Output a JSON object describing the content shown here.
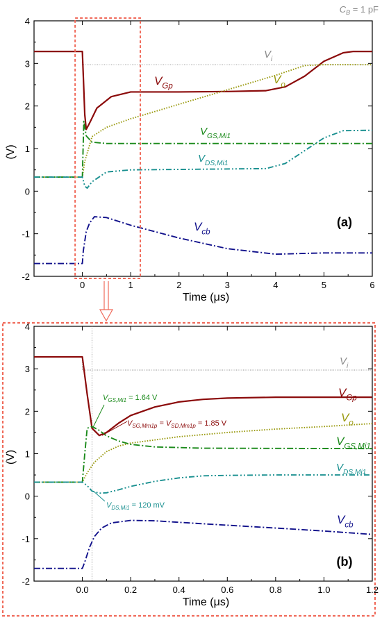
{
  "chart_data": [
    {
      "type": "line",
      "panel_label": "(a)",
      "annotation_top": "C_B = 1 pF",
      "xlabel": "Time (μs)",
      "ylabel": "(V)",
      "xlim": [
        -1.0,
        6.0
      ],
      "ylim": [
        -2,
        4
      ],
      "xticks": [
        0,
        1,
        2,
        3,
        4,
        5,
        6
      ],
      "yticks": [
        -2,
        -1,
        0,
        1,
        2,
        3,
        4
      ],
      "grid": false,
      "series": [
        {
          "name": "V_i",
          "color": "#8c8c8c",
          "style": "dotted-thin",
          "points": [
            [
              -1.0,
              3.28
            ],
            [
              0.0,
              3.28
            ],
            [
              0.0,
              2.97
            ],
            [
              6.0,
              2.97
            ]
          ]
        },
        {
          "name": "V_Gp",
          "color": "#8b0a0a",
          "style": "solid",
          "points": [
            [
              -1.0,
              3.28
            ],
            [
              0.0,
              3.28
            ],
            [
              0.02,
              2.7
            ],
            [
              0.05,
              1.8
            ],
            [
              0.08,
              1.45
            ],
            [
              0.15,
              1.6
            ],
            [
              0.3,
              1.95
            ],
            [
              0.6,
              2.22
            ],
            [
              1.0,
              2.33
            ],
            [
              2.0,
              2.33
            ],
            [
              3.0,
              2.34
            ],
            [
              3.8,
              2.36
            ],
            [
              4.2,
              2.45
            ],
            [
              4.6,
              2.7
            ],
            [
              5.0,
              3.05
            ],
            [
              5.4,
              3.25
            ],
            [
              5.6,
              3.28
            ],
            [
              6.0,
              3.28
            ]
          ]
        },
        {
          "name": "V_o",
          "color": "#9a9a10",
          "style": "dotted",
          "points": [
            [
              -1.0,
              0.33
            ],
            [
              0.0,
              0.33
            ],
            [
              0.05,
              0.7
            ],
            [
              0.2,
              1.28
            ],
            [
              0.5,
              1.5
            ],
            [
              1.0,
              1.7
            ],
            [
              2.0,
              2.04
            ],
            [
              3.0,
              2.38
            ],
            [
              4.0,
              2.72
            ],
            [
              4.6,
              2.95
            ],
            [
              5.0,
              2.97
            ],
            [
              6.0,
              2.97
            ]
          ]
        },
        {
          "name": "V_GS,Mi1",
          "color": "#1b8a1b",
          "style": "dash-dot",
          "points": [
            [
              -1.0,
              0.33
            ],
            [
              0.0,
              0.33
            ],
            [
              0.03,
              1.64
            ],
            [
              0.08,
              1.3
            ],
            [
              0.2,
              1.15
            ],
            [
              0.5,
              1.12
            ],
            [
              6.0,
              1.12
            ]
          ]
        },
        {
          "name": "V_DS,Mi1",
          "color": "#1a9090",
          "style": "dash-dot-dot",
          "points": [
            [
              -1.0,
              0.33
            ],
            [
              0.0,
              0.33
            ],
            [
              0.02,
              0.25
            ],
            [
              0.05,
              0.12
            ],
            [
              0.1,
              0.07
            ],
            [
              0.2,
              0.22
            ],
            [
              0.5,
              0.45
            ],
            [
              1.0,
              0.5
            ],
            [
              3.8,
              0.53
            ],
            [
              4.2,
              0.65
            ],
            [
              4.6,
              0.95
            ],
            [
              5.0,
              1.25
            ],
            [
              5.4,
              1.42
            ],
            [
              6.0,
              1.43
            ]
          ]
        },
        {
          "name": "V_cb",
          "color": "#12128c",
          "style": "dash-dot",
          "points": [
            [
              -1.0,
              -1.7
            ],
            [
              0.0,
              -1.7
            ],
            [
              0.02,
              -1.4
            ],
            [
              0.08,
              -0.95
            ],
            [
              0.15,
              -0.75
            ],
            [
              0.25,
              -0.6
            ],
            [
              0.5,
              -0.62
            ],
            [
              1.0,
              -0.8
            ],
            [
              2.0,
              -1.1
            ],
            [
              3.0,
              -1.35
            ],
            [
              4.0,
              -1.48
            ],
            [
              5.0,
              -1.45
            ],
            [
              6.0,
              -1.45
            ]
          ]
        }
      ],
      "curve_labels": [
        {
          "text": "V",
          "sub": "i",
          "series": 0
        },
        {
          "text": "V",
          "sub": "Gp",
          "series": 1
        },
        {
          "text": "V",
          "sub": "o",
          "series": 2
        },
        {
          "text": "V",
          "sub": "GS,Mi1",
          "series": 3
        },
        {
          "text": "V",
          "sub": "DS,Mi1",
          "series": 4
        },
        {
          "text": "V",
          "sub": "cb",
          "series": 5
        }
      ],
      "zoom_box": {
        "x": [
          -0.15,
          1.2
        ],
        "y": [
          -2,
          4
        ]
      }
    },
    {
      "type": "line",
      "panel_label": "(b)",
      "xlabel": "Time (μs)",
      "ylabel": "(V)",
      "xlim": [
        -0.2,
        1.2
      ],
      "ylim": [
        -2,
        4
      ],
      "xticks": [
        0.0,
        0.2,
        0.4,
        0.6,
        0.8,
        1.0,
        1.2
      ],
      "yticks": [
        -2,
        -1,
        0,
        1,
        2,
        3,
        4
      ],
      "grid": false,
      "marker_time": 0.04,
      "series": [
        {
          "name": "V_i",
          "color": "#8c8c8c",
          "style": "dotted-thin",
          "points": [
            [
              -0.2,
              3.28
            ],
            [
              0.0,
              3.28
            ],
            [
              0.0,
              2.97
            ],
            [
              1.2,
              2.97
            ]
          ]
        },
        {
          "name": "V_Gp",
          "color": "#8b0a0a",
          "style": "solid",
          "points": [
            [
              -0.2,
              3.28
            ],
            [
              0.0,
              3.28
            ],
            [
              0.02,
              2.4
            ],
            [
              0.04,
              1.6
            ],
            [
              0.07,
              1.43
            ],
            [
              0.1,
              1.5
            ],
            [
              0.15,
              1.72
            ],
            [
              0.2,
              1.9
            ],
            [
              0.3,
              2.1
            ],
            [
              0.4,
              2.22
            ],
            [
              0.5,
              2.28
            ],
            [
              0.6,
              2.31
            ],
            [
              0.8,
              2.33
            ],
            [
              1.2,
              2.33
            ]
          ]
        },
        {
          "name": "V_o",
          "color": "#9a9a10",
          "style": "dotted",
          "points": [
            [
              -0.2,
              0.33
            ],
            [
              0.0,
              0.33
            ],
            [
              0.02,
              0.55
            ],
            [
              0.05,
              0.8
            ],
            [
              0.1,
              1.05
            ],
            [
              0.15,
              1.18
            ],
            [
              0.2,
              1.25
            ],
            [
              0.4,
              1.4
            ],
            [
              0.6,
              1.5
            ],
            [
              0.8,
              1.58
            ],
            [
              1.0,
              1.64
            ],
            [
              1.2,
              1.71
            ]
          ]
        },
        {
          "name": "V_GS,Mi1",
          "color": "#1b8a1b",
          "style": "dash-dot",
          "points": [
            [
              -0.2,
              0.33
            ],
            [
              0.0,
              0.33
            ],
            [
              0.01,
              1.0
            ],
            [
              0.02,
              1.6
            ],
            [
              0.04,
              1.64
            ],
            [
              0.07,
              1.55
            ],
            [
              0.1,
              1.42
            ],
            [
              0.15,
              1.3
            ],
            [
              0.2,
              1.22
            ],
            [
              0.3,
              1.16
            ],
            [
              0.5,
              1.13
            ],
            [
              1.2,
              1.12
            ]
          ]
        },
        {
          "name": "V_DS,Mi1",
          "color": "#1a9090",
          "style": "dash-dot-dot",
          "points": [
            [
              -0.2,
              0.33
            ],
            [
              0.0,
              0.33
            ],
            [
              0.02,
              0.25
            ],
            [
              0.04,
              0.12
            ],
            [
              0.07,
              0.07
            ],
            [
              0.1,
              0.08
            ],
            [
              0.15,
              0.15
            ],
            [
              0.2,
              0.23
            ],
            [
              0.3,
              0.35
            ],
            [
              0.4,
              0.43
            ],
            [
              0.5,
              0.48
            ],
            [
              0.6,
              0.49
            ],
            [
              0.8,
              0.5
            ],
            [
              1.2,
              0.5
            ]
          ]
        },
        {
          "name": "V_cb",
          "color": "#12128c",
          "style": "dash-dot",
          "points": [
            [
              -0.2,
              -1.7
            ],
            [
              0.0,
              -1.7
            ],
            [
              0.01,
              -1.55
            ],
            [
              0.03,
              -1.2
            ],
            [
              0.05,
              -0.95
            ],
            [
              0.08,
              -0.75
            ],
            [
              0.12,
              -0.63
            ],
            [
              0.2,
              -0.57
            ],
            [
              0.3,
              -0.58
            ],
            [
              0.5,
              -0.65
            ],
            [
              0.8,
              -0.75
            ],
            [
              1.0,
              -0.82
            ],
            [
              1.2,
              -0.9
            ]
          ]
        }
      ],
      "curve_labels": [
        {
          "text": "V",
          "sub": "i",
          "series": 0
        },
        {
          "text": "V",
          "sub": "Gp",
          "series": 1
        },
        {
          "text": "V",
          "sub": "o",
          "series": 2
        },
        {
          "text": "V",
          "sub": "GS,Mi1",
          "series": 3
        },
        {
          "text": "V",
          "sub": "DS,Mi1",
          "series": 4
        },
        {
          "text": "V",
          "sub": "cb",
          "series": 5
        }
      ],
      "annotations": [
        {
          "parts": [
            [
              "V",
              ""
            ],
            [
              "GS,Mi1",
              "sub"
            ],
            [
              " = 1.64 V",
              ""
            ]
          ],
          "color": "#1b8a1b",
          "target": [
            0.04,
            1.64
          ]
        },
        {
          "parts": [
            [
              "V",
              ""
            ],
            [
              "SG,Mm1p",
              "sub"
            ],
            [
              " = V",
              ""
            ],
            [
              "SD,Mm1p",
              "sub"
            ],
            [
              " = 1.85 V",
              ""
            ]
          ],
          "color": "#8b0a0a",
          "target": [
            0.07,
            1.43
          ]
        },
        {
          "parts": [
            [
              "V",
              ""
            ],
            [
              "DS,Mi1",
              "sub"
            ],
            [
              " = 120 mV",
              ""
            ]
          ],
          "color": "#1a9090",
          "target": [
            0.04,
            0.12
          ]
        }
      ]
    }
  ]
}
